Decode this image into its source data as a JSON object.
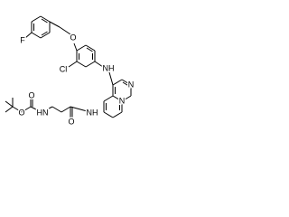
{
  "atoms": [
    {
      "label": "F"
    },
    {
      "label": "O"
    },
    {
      "label": "Cl"
    },
    {
      "label": "NH"
    },
    {
      "label": "N"
    },
    {
      "label": "N"
    },
    {
      "label": "O"
    },
    {
      "label": "O"
    },
    {
      "label": "HN"
    },
    {
      "label": "O"
    },
    {
      "label": "NH"
    }
  ]
}
